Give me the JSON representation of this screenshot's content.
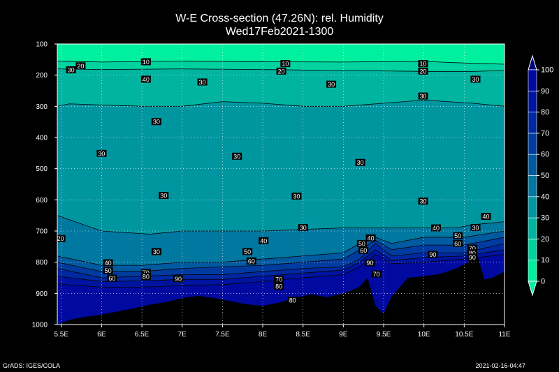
{
  "chart_data": {
    "type": "heatmap",
    "title": "W-E Cross-section (47.26N): rel. Humidity",
    "subtitle": "Wed17Feb2021-1300",
    "x_ticks": [
      "5.5E",
      "6E",
      "6.5E",
      "7E",
      "7.5E",
      "8E",
      "8.5E",
      "9E",
      "9.5E",
      "10E",
      "10.5E",
      "11E"
    ],
    "y_ticks": [
      100,
      200,
      300,
      400,
      500,
      600,
      700,
      800,
      900,
      1000
    ],
    "xlim": [
      5.45,
      11.0
    ],
    "ylim": [
      1000,
      100
    ],
    "grid": true,
    "colorbar": {
      "ticks": [
        0,
        10,
        20,
        30,
        40,
        50,
        60,
        70,
        80,
        90,
        100
      ],
      "colors": [
        "#00f0a0",
        "#00d2a0",
        "#00b4a0",
        "#0096a0",
        "#0078a0",
        "#005aa0",
        "#003ca0",
        "#0028a0",
        "#0014a0",
        "#000aa0"
      ]
    },
    "terrain": [
      [
        5.45,
        1000
      ],
      [
        5.6,
        985
      ],
      [
        5.8,
        975
      ],
      [
        6.0,
        968
      ],
      [
        6.2,
        958
      ],
      [
        6.4,
        948
      ],
      [
        6.6,
        936
      ],
      [
        6.8,
        928
      ],
      [
        7.0,
        915
      ],
      [
        7.2,
        908
      ],
      [
        7.4,
        915
      ],
      [
        7.6,
        925
      ],
      [
        7.8,
        935
      ],
      [
        8.0,
        940
      ],
      [
        8.2,
        930
      ],
      [
        8.4,
        915
      ],
      [
        8.6,
        903
      ],
      [
        8.8,
        912
      ],
      [
        9.0,
        900
      ],
      [
        9.2,
        880
      ],
      [
        9.3,
        850
      ],
      [
        9.4,
        940
      ],
      [
        9.5,
        965
      ],
      [
        9.6,
        910
      ],
      [
        9.7,
        880
      ],
      [
        9.8,
        850
      ],
      [
        10.0,
        845
      ],
      [
        10.2,
        838
      ],
      [
        10.4,
        820
      ],
      [
        10.55,
        800
      ],
      [
        10.65,
        765
      ],
      [
        10.75,
        855
      ],
      [
        10.85,
        850
      ],
      [
        11.0,
        830
      ],
      [
        11.0,
        1000
      ]
    ],
    "series": [
      {
        "value": 10,
        "points": [
          [
            5.45,
            155
          ],
          [
            6.0,
            158
          ],
          [
            7.0,
            155
          ],
          [
            8.0,
            157
          ],
          [
            9.0,
            158
          ],
          [
            10.0,
            156
          ],
          [
            10.6,
            162
          ],
          [
            11.0,
            165
          ]
        ]
      },
      {
        "value": 20,
        "points": [
          [
            5.45,
            180
          ],
          [
            6.0,
            182
          ],
          [
            7.0,
            180
          ],
          [
            8.0,
            182
          ],
          [
            9.0,
            185
          ],
          [
            10.0,
            188
          ],
          [
            10.6,
            188
          ],
          [
            11.0,
            185
          ]
        ]
      },
      {
        "value": 30,
        "points": [
          [
            5.45,
            300
          ],
          [
            5.6,
            292
          ],
          [
            6.5,
            300
          ],
          [
            7.0,
            300
          ],
          [
            7.5,
            285
          ],
          [
            8.0,
            290
          ],
          [
            8.5,
            300
          ],
          [
            9.0,
            300
          ],
          [
            9.5,
            290
          ],
          [
            10.0,
            280
          ],
          [
            10.6,
            290
          ],
          [
            11.0,
            300
          ]
        ]
      },
      {
        "value": 40,
        "points": [
          [
            5.45,
            650
          ],
          [
            6.0,
            700
          ],
          [
            6.6,
            710
          ],
          [
            7.0,
            700
          ],
          [
            7.5,
            700
          ],
          [
            8.0,
            700
          ],
          [
            8.5,
            695
          ],
          [
            9.0,
            690
          ],
          [
            9.5,
            690
          ],
          [
            10.0,
            690
          ],
          [
            10.4,
            690
          ],
          [
            10.6,
            680
          ],
          [
            11.0,
            670
          ]
        ]
      },
      {
        "value": 50,
        "points": [
          [
            5.45,
            780
          ],
          [
            6.0,
            810
          ],
          [
            6.5,
            810
          ],
          [
            7.0,
            800
          ],
          [
            7.5,
            800
          ],
          [
            8.0,
            790
          ],
          [
            8.5,
            780
          ],
          [
            9.0,
            770
          ],
          [
            9.2,
            740
          ],
          [
            9.4,
            720
          ],
          [
            9.6,
            740
          ],
          [
            10.0,
            720
          ],
          [
            10.5,
            720
          ],
          [
            11.0,
            700
          ]
        ]
      },
      {
        "value": 60,
        "points": [
          [
            5.45,
            800
          ],
          [
            6.0,
            830
          ],
          [
            6.5,
            830
          ],
          [
            7.0,
            820
          ],
          [
            7.5,
            815
          ],
          [
            8.0,
            810
          ],
          [
            8.5,
            800
          ],
          [
            9.0,
            790
          ],
          [
            9.2,
            760
          ],
          [
            9.4,
            730
          ],
          [
            9.6,
            760
          ],
          [
            10.0,
            745
          ],
          [
            10.5,
            745
          ],
          [
            11.0,
            720
          ]
        ]
      },
      {
        "value": 70,
        "points": [
          [
            5.45,
            820
          ],
          [
            6.0,
            850
          ],
          [
            6.5,
            845
          ],
          [
            7.0,
            840
          ],
          [
            7.5,
            840
          ],
          [
            8.0,
            830
          ],
          [
            8.5,
            820
          ],
          [
            9.0,
            815
          ],
          [
            9.2,
            790
          ],
          [
            9.4,
            740
          ],
          [
            9.6,
            780
          ],
          [
            10.0,
            770
          ],
          [
            10.5,
            770
          ],
          [
            11.0,
            740
          ]
        ]
      },
      {
        "value": 80,
        "points": [
          [
            5.45,
            845
          ],
          [
            6.0,
            862
          ],
          [
            6.5,
            860
          ],
          [
            7.0,
            855
          ],
          [
            7.5,
            855
          ],
          [
            8.0,
            845
          ],
          [
            8.5,
            835
          ],
          [
            9.0,
            825
          ],
          [
            9.2,
            800
          ],
          [
            9.4,
            760
          ],
          [
            9.6,
            795
          ],
          [
            10.0,
            785
          ],
          [
            10.5,
            780
          ],
          [
            11.0,
            760
          ]
        ]
      },
      {
        "value": 90,
        "points": [
          [
            5.45,
            870
          ],
          [
            6.0,
            880
          ],
          [
            6.5,
            880
          ],
          [
            7.0,
            875
          ],
          [
            7.5,
            872
          ],
          [
            8.0,
            862
          ],
          [
            8.5,
            850
          ],
          [
            9.0,
            840
          ],
          [
            9.2,
            815
          ],
          [
            9.4,
            775
          ],
          [
            9.6,
            805
          ],
          [
            10.0,
            800
          ],
          [
            10.5,
            790
          ],
          [
            11.0,
            775
          ]
        ]
      }
    ],
    "labels": [
      {
        "text": "10",
        "x": 6.55,
        "y": 157
      },
      {
        "text": "10",
        "x": 8.28,
        "y": 163
      },
      {
        "text": "10",
        "x": 9.99,
        "y": 163
      },
      {
        "text": "20",
        "x": 5.74,
        "y": 170
      },
      {
        "text": "20",
        "x": 8.23,
        "y": 187
      },
      {
        "text": "20",
        "x": 9.99,
        "y": 187
      },
      {
        "text": "30",
        "x": 5.62,
        "y": 183
      },
      {
        "text": "30",
        "x": 7.25,
        "y": 222
      },
      {
        "text": "30",
        "x": 8.85,
        "y": 229
      },
      {
        "text": "30",
        "x": 10.64,
        "y": 213
      },
      {
        "text": "30",
        "x": 9.99,
        "y": 267
      },
      {
        "text": "30",
        "x": 6.68,
        "y": 349
      },
      {
        "text": "30",
        "x": 6.0,
        "y": 451
      },
      {
        "text": "30",
        "x": 7.68,
        "y": 460
      },
      {
        "text": "30",
        "x": 9.21,
        "y": 480
      },
      {
        "text": "30",
        "x": 6.77,
        "y": 586
      },
      {
        "text": "30",
        "x": 8.42,
        "y": 588
      },
      {
        "text": "30",
        "x": 9.99,
        "y": 604
      },
      {
        "text": "30",
        "x": 8.5,
        "y": 689
      },
      {
        "text": "30",
        "x": 10.64,
        "y": 689
      },
      {
        "text": "30",
        "x": 6.68,
        "y": 766
      },
      {
        "text": "20",
        "x": 5.49,
        "y": 724
      },
      {
        "text": "40",
        "x": 6.55,
        "y": 213
      },
      {
        "text": "40",
        "x": 10.77,
        "y": 653
      },
      {
        "text": "40",
        "x": 10.15,
        "y": 690
      },
      {
        "text": "40",
        "x": 9.34,
        "y": 722
      },
      {
        "text": "40",
        "x": 8.01,
        "y": 731
      },
      {
        "text": "40",
        "x": 6.08,
        "y": 802
      },
      {
        "text": "50",
        "x": 6.08,
        "y": 827
      },
      {
        "text": "50",
        "x": 7.81,
        "y": 766
      },
      {
        "text": "50",
        "x": 9.23,
        "y": 740
      },
      {
        "text": "50",
        "x": 10.42,
        "y": 715
      },
      {
        "text": "60",
        "x": 6.13,
        "y": 851
      },
      {
        "text": "60",
        "x": 7.86,
        "y": 796
      },
      {
        "text": "60",
        "x": 9.25,
        "y": 762
      },
      {
        "text": "60",
        "x": 10.42,
        "y": 740
      },
      {
        "text": "70",
        "x": 6.55,
        "y": 833
      },
      {
        "text": "70",
        "x": 8.2,
        "y": 855
      },
      {
        "text": "70",
        "x": 9.41,
        "y": 838
      },
      {
        "text": "70",
        "x": 10.6,
        "y": 755
      },
      {
        "text": "80",
        "x": 6.55,
        "y": 846
      },
      {
        "text": "80",
        "x": 8.2,
        "y": 877
      },
      {
        "text": "80",
        "x": 8.37,
        "y": 922
      },
      {
        "text": "80",
        "x": 10.6,
        "y": 770
      },
      {
        "text": "90",
        "x": 6.95,
        "y": 853
      },
      {
        "text": "90",
        "x": 9.33,
        "y": 802
      },
      {
        "text": "90",
        "x": 10.11,
        "y": 775
      },
      {
        "text": "90",
        "x": 10.6,
        "y": 784
      }
    ]
  },
  "footer": {
    "left": "GrADS: IGES/COLA",
    "right": "2021-02-16-04:47"
  }
}
